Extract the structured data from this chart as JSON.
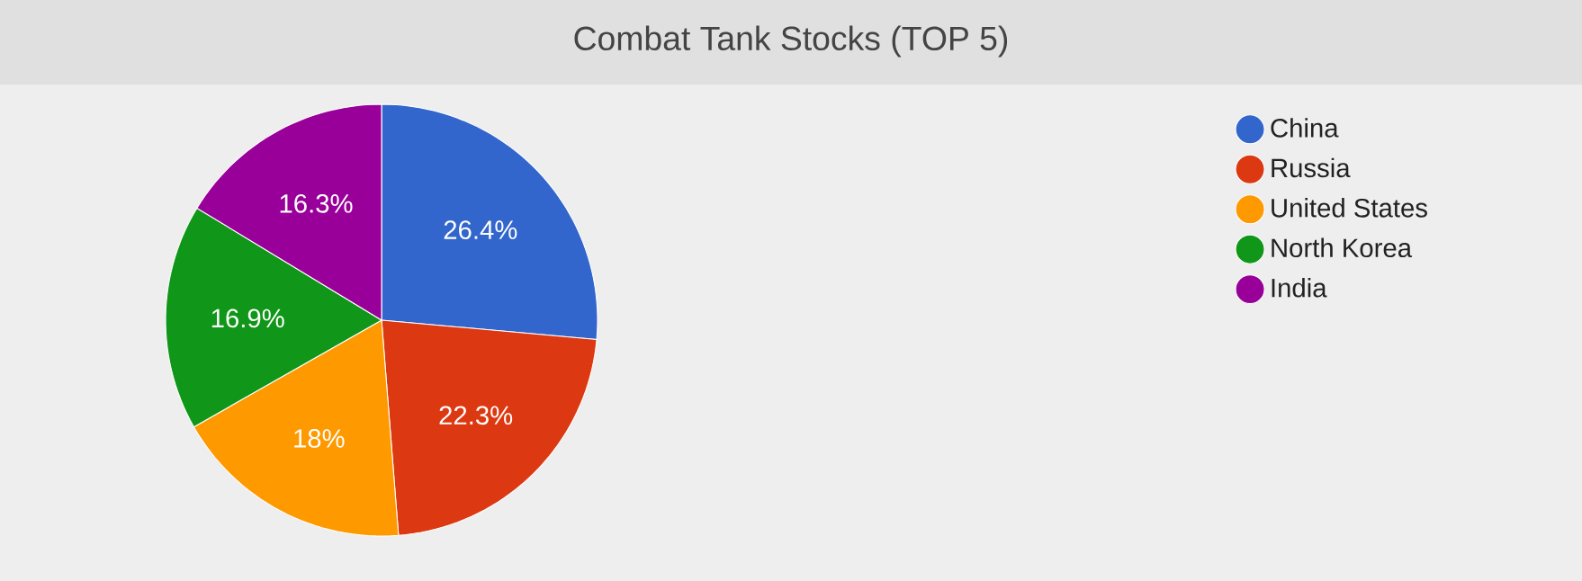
{
  "chart_data": {
    "type": "pie",
    "title": "Combat Tank Stocks (TOP 5)",
    "categories": [
      "China",
      "Russia",
      "United States",
      "North Korea",
      "India"
    ],
    "values": [
      26.4,
      22.3,
      18,
      16.9,
      16.3
    ],
    "value_labels": [
      "26.4%",
      "22.3%",
      "18%",
      "16.9%",
      "16.3%"
    ],
    "colors": [
      "#3366cc",
      "#dc3912",
      "#ff9900",
      "#109618",
      "#990099"
    ],
    "legend": "top right"
  }
}
